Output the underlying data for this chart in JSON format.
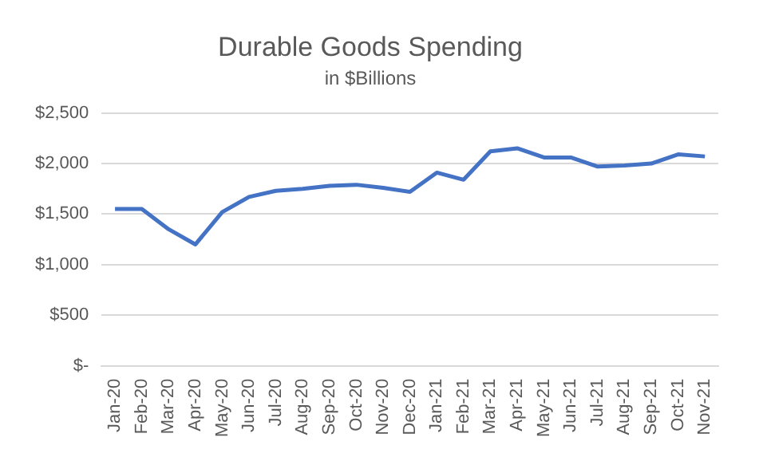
{
  "chart_data": {
    "type": "line",
    "title": "Durable Goods Spending",
    "subtitle": "in $Billions",
    "categories": [
      "Jan-20",
      "Feb-20",
      "Mar-20",
      "Apr-20",
      "May-20",
      "Jun-20",
      "Jul-20",
      "Aug-20",
      "Sep-20",
      "Oct-20",
      "Nov-20",
      "Dec-20",
      "Jan-21",
      "Feb-21",
      "Mar-21",
      "Apr-21",
      "May-21",
      "Jun-21",
      "Jul-21",
      "Aug-21",
      "Sep-21",
      "Oct-21",
      "Nov-21"
    ],
    "series": [
      {
        "color": "#4472c4",
        "values": [
          1550,
          1550,
          1350,
          1200,
          1520,
          1670,
          1730,
          1750,
          1780,
          1790,
          1760,
          1720,
          1910,
          1840,
          2120,
          2150,
          2060,
          2060,
          1970,
          1980,
          2000,
          2090,
          2070
        ]
      }
    ],
    "ylim": [
      0,
      2500
    ],
    "yticks": [
      {
        "value": 0,
        "label": "$-"
      },
      {
        "value": 500,
        "label": "$500"
      },
      {
        "value": 1000,
        "label": "$1,000"
      },
      {
        "value": 1500,
        "label": "$1,500"
      },
      {
        "value": 2000,
        "label": "$2,000"
      },
      {
        "value": 2500,
        "label": "$2,500"
      }
    ],
    "grid": "y",
    "legend": false,
    "marker": "none",
    "line_style": "solid"
  }
}
